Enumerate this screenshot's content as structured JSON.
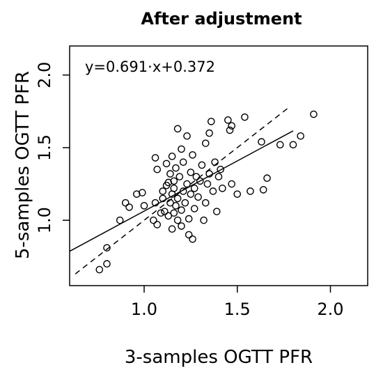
{
  "chart_data": {
    "type": "scatter",
    "title": "After adjustment",
    "xlabel": "3-samples OGTT PFR",
    "ylabel": "5-samples OGTT PFR",
    "xlim": [
      0.6,
      2.2
    ],
    "ylim": [
      0.55,
      2.2
    ],
    "x_ticks": [
      1.0,
      1.5,
      2.0
    ],
    "y_ticks": [
      1.0,
      1.5,
      2.0
    ],
    "x_tick_labels": [
      "1.0",
      "1.5",
      "2.0"
    ],
    "y_tick_labels": [
      "1.0",
      "1.5",
      "2.0"
    ],
    "grid": false,
    "annotation": "y=0.691·x+0.372",
    "regression_line": {
      "slope": 0.691,
      "intercept": 0.372,
      "x_range": [
        0.6,
        1.8
      ],
      "style": "solid"
    },
    "identity_line": {
      "slope": 1.0,
      "intercept": 0.0,
      "x_range": [
        0.63,
        1.78
      ],
      "style": "dashed"
    },
    "points": [
      [
        0.76,
        0.66
      ],
      [
        0.8,
        0.7
      ],
      [
        0.8,
        0.81
      ],
      [
        0.87,
        1.0
      ],
      [
        0.9,
        1.12
      ],
      [
        0.92,
        1.09
      ],
      [
        0.96,
        1.18
      ],
      [
        0.99,
        1.19
      ],
      [
        1.0,
        1.1
      ],
      [
        1.05,
        1.0
      ],
      [
        1.06,
        1.43
      ],
      [
        1.06,
        1.12
      ],
      [
        1.07,
        1.35
      ],
      [
        1.07,
        0.97
      ],
      [
        1.09,
        1.05
      ],
      [
        1.1,
        1.15
      ],
      [
        1.1,
        1.2
      ],
      [
        1.11,
        1.06
      ],
      [
        1.12,
        1.24
      ],
      [
        1.12,
        1.39
      ],
      [
        1.13,
        1.03
      ],
      [
        1.13,
        1.26
      ],
      [
        1.14,
        1.12
      ],
      [
        1.14,
        1.32
      ],
      [
        1.15,
        0.94
      ],
      [
        1.15,
        1.44
      ],
      [
        1.15,
        1.18
      ],
      [
        1.16,
        1.05
      ],
      [
        1.16,
        1.22
      ],
      [
        1.16,
        1.27
      ],
      [
        1.17,
        1.1
      ],
      [
        1.17,
        1.36
      ],
      [
        1.18,
        1.0
      ],
      [
        1.18,
        1.63
      ],
      [
        1.18,
        1.15
      ],
      [
        1.19,
        1.3
      ],
      [
        1.2,
        1.07
      ],
      [
        1.2,
        1.49
      ],
      [
        1.2,
        0.96
      ],
      [
        1.21,
        1.2
      ],
      [
        1.21,
        1.4
      ],
      [
        1.22,
        1.12
      ],
      [
        1.23,
        1.25
      ],
      [
        1.23,
        1.58
      ],
      [
        1.24,
        1.01
      ],
      [
        1.24,
        0.9
      ],
      [
        1.25,
        1.33
      ],
      [
        1.25,
        1.18
      ],
      [
        1.26,
        1.45
      ],
      [
        1.26,
        0.87
      ],
      [
        1.27,
        1.08
      ],
      [
        1.27,
        1.22
      ],
      [
        1.28,
        1.3
      ],
      [
        1.29,
        1.16
      ],
      [
        1.3,
        1.27
      ],
      [
        1.31,
        1.38
      ],
      [
        1.32,
        1.0
      ],
      [
        1.33,
        1.12
      ],
      [
        1.33,
        1.53
      ],
      [
        1.34,
        1.25
      ],
      [
        1.35,
        1.32
      ],
      [
        1.35,
        1.6
      ],
      [
        1.36,
        1.68
      ],
      [
        1.37,
        1.2
      ],
      [
        1.38,
        1.4
      ],
      [
        1.39,
        1.06
      ],
      [
        1.4,
        1.3
      ],
      [
        1.41,
        1.35
      ],
      [
        1.42,
        1.22
      ],
      [
        1.45,
        1.69
      ],
      [
        1.46,
        1.62
      ],
      [
        1.47,
        1.65
      ],
      [
        1.47,
        1.25
      ],
      [
        1.5,
        1.18
      ],
      [
        1.54,
        1.71
      ],
      [
        1.57,
        1.2
      ],
      [
        1.63,
        1.54
      ],
      [
        1.64,
        1.21
      ],
      [
        1.66,
        1.29
      ],
      [
        1.73,
        1.52
      ],
      [
        1.8,
        1.52
      ],
      [
        1.84,
        1.58
      ],
      [
        1.91,
        1.73
      ]
    ]
  }
}
